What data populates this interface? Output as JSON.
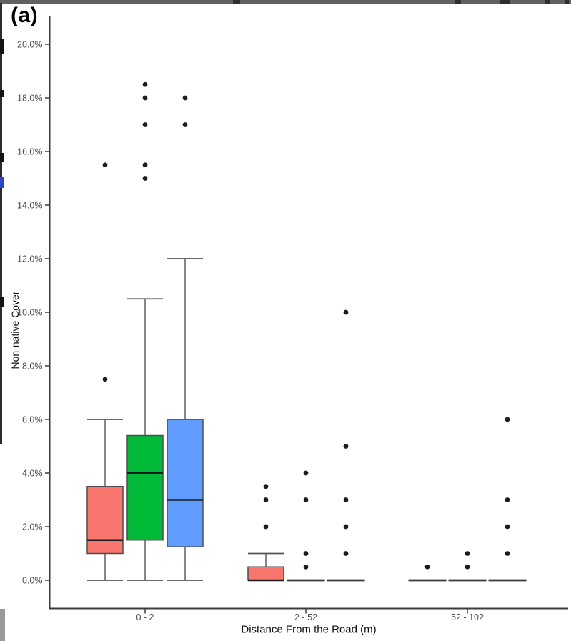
{
  "panel_label": "(a)",
  "chart_data": {
    "type": "boxplot",
    "title": "",
    "xlabel": "Distance From the Road (m)",
    "ylabel": "Non-native Cover",
    "y_unit": "percent",
    "grid": false,
    "legend": "none",
    "categories": [
      "0 - 2",
      "2 - 52",
      "52 - 102"
    ],
    "ylim": [
      0,
      21
    ],
    "y_ticks": [
      {
        "value": 0,
        "label": "0.0%"
      },
      {
        "value": 2,
        "label": "2.0%"
      },
      {
        "value": 4,
        "label": "4.0%"
      },
      {
        "value": 6,
        "label": "6.0%"
      },
      {
        "value": 8,
        "label": "8.0%"
      },
      {
        "value": 10,
        "label": "10.0%"
      },
      {
        "value": 12,
        "label": "12.0%"
      },
      {
        "value": 14,
        "label": "14.0%"
      },
      {
        "value": 16,
        "label": "16.0%"
      },
      {
        "value": 18,
        "label": "18.0%"
      },
      {
        "value": 20,
        "label": "20.0%"
      }
    ],
    "series": [
      {
        "name": "red",
        "color": "#F8766D",
        "boxes": [
          {
            "category": "0 - 2",
            "min": 0,
            "q1": 1.0,
            "median": 1.5,
            "q3": 3.5,
            "max": 6.0,
            "outliers": [
              7.5,
              15.5
            ]
          },
          {
            "category": "2 - 52",
            "min": 0,
            "q1": 0,
            "median": 0,
            "q3": 0.5,
            "max": 1.0,
            "outliers": [
              2.0,
              3.0,
              3.5
            ]
          },
          {
            "category": "52 - 102",
            "min": 0,
            "q1": 0,
            "median": 0,
            "q3": 0,
            "max": 0,
            "outliers": [
              0.5
            ]
          }
        ]
      },
      {
        "name": "green",
        "color": "#00BA38",
        "boxes": [
          {
            "category": "0 - 2",
            "min": 0,
            "q1": 1.5,
            "median": 4.0,
            "q3": 5.4,
            "max": 10.5,
            "outliers": [
              15.0,
              15.5,
              17.0,
              18.0,
              18.5
            ]
          },
          {
            "category": "2 - 52",
            "min": 0,
            "q1": 0,
            "median": 0,
            "q3": 0,
            "max": 0,
            "outliers": [
              0.5,
              1.0,
              3.0,
              4.0
            ]
          },
          {
            "category": "52 - 102",
            "min": 0,
            "q1": 0,
            "median": 0,
            "q3": 0,
            "max": 0,
            "outliers": [
              0.5,
              1.0
            ]
          }
        ]
      },
      {
        "name": "blue",
        "color": "#619CFF",
        "boxes": [
          {
            "category": "0 - 2",
            "min": 0,
            "q1": 1.25,
            "median": 3.0,
            "q3": 6.0,
            "max": 12.0,
            "outliers": [
              17.0,
              18.0
            ]
          },
          {
            "category": "2 - 52",
            "min": 0,
            "q1": 0,
            "median": 0,
            "q3": 0,
            "max": 0,
            "outliers": [
              1.0,
              2.0,
              3.0,
              5.0,
              10.0
            ]
          },
          {
            "category": "52 - 102",
            "min": 0,
            "q1": 0,
            "median": 0,
            "q3": 0,
            "max": 0,
            "outliers": [
              1.0,
              2.0,
              3.0,
              6.0
            ]
          }
        ]
      }
    ]
  }
}
